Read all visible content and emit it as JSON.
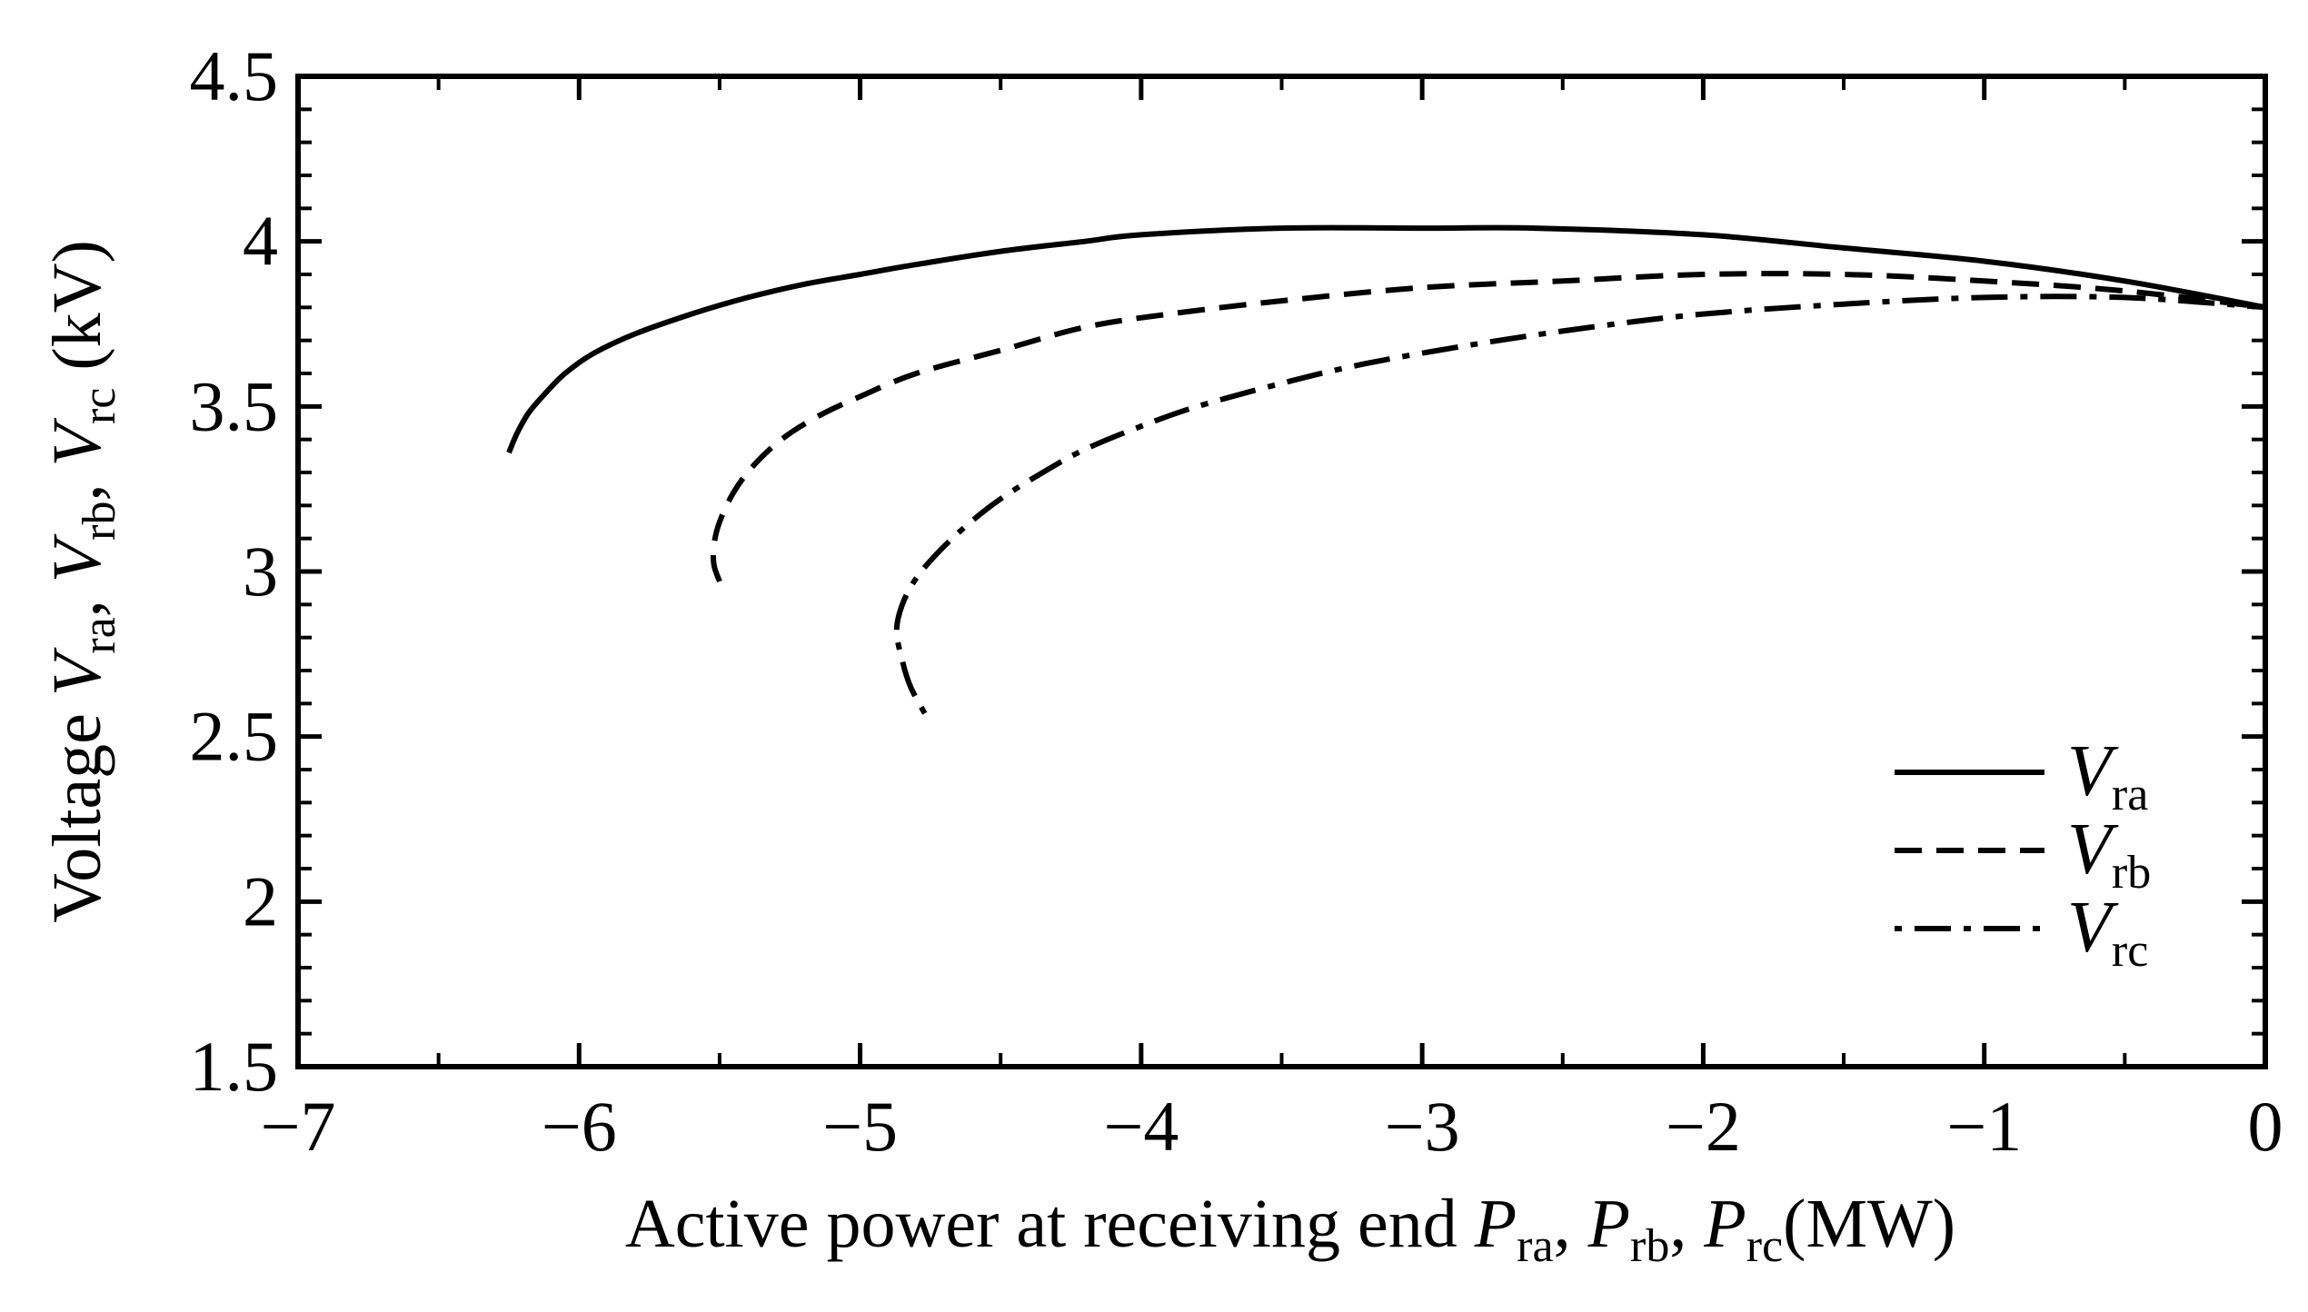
{
  "chart_data": {
    "type": "line",
    "title": "",
    "xlabel": {
      "prefix": "Active power at receiving end",
      "vars": [
        {
          "main": "P",
          "sub": "ra"
        },
        {
          "main": "P",
          "sub": "rb"
        },
        {
          "main": "P",
          "sub": "rc"
        }
      ],
      "separator": ", ",
      "unit": "(MW)"
    },
    "ylabel": {
      "prefix": "Voltage",
      "vars": [
        {
          "main": "V",
          "sub": "ra"
        },
        {
          "main": "V",
          "sub": "rb"
        },
        {
          "main": "V",
          "sub": "rc"
        }
      ],
      "separator": ", ",
      "unit": "(kV)"
    },
    "xlim": [
      -7,
      0
    ],
    "ylim": [
      1.5,
      4.5
    ],
    "x_ticks": [
      -7,
      -6,
      -5,
      -4,
      -3,
      -2,
      -1,
      0
    ],
    "x_tick_labels": [
      "−7",
      "−6",
      "−5",
      "−4",
      "−3",
      "−2",
      "−1",
      "0"
    ],
    "y_ticks": [
      1.5,
      2,
      2.5,
      3,
      3.5,
      4,
      4.5
    ],
    "y_tick_labels": [
      "1.5",
      "2",
      "2.5",
      "3",
      "3.5",
      "4",
      "4.5"
    ],
    "x_minor_step": 0.5,
    "y_minor_step": 0.1,
    "grid": false,
    "legend_position": "bottom-right",
    "series": [
      {
        "name": "V_ra",
        "legend_main": "V",
        "legend_sub": "ra",
        "style": "solid",
        "points": [
          [
            -6.25,
            3.36
          ],
          [
            -6.22,
            3.42
          ],
          [
            -6.18,
            3.48
          ],
          [
            -6.12,
            3.54
          ],
          [
            -6.05,
            3.6
          ],
          [
            -5.95,
            3.66
          ],
          [
            -5.8,
            3.72
          ],
          [
            -5.6,
            3.78
          ],
          [
            -5.4,
            3.83
          ],
          [
            -5.2,
            3.87
          ],
          [
            -5.0,
            3.9
          ],
          [
            -4.8,
            3.93
          ],
          [
            -4.5,
            3.97
          ],
          [
            -4.2,
            4.0
          ],
          [
            -4.0,
            4.02
          ],
          [
            -3.5,
            4.04
          ],
          [
            -3.0,
            4.04
          ],
          [
            -2.6,
            4.04
          ],
          [
            -2.0,
            4.02
          ],
          [
            -1.5,
            3.98
          ],
          [
            -1.0,
            3.94
          ],
          [
            -0.5,
            3.88
          ],
          [
            0.0,
            3.8
          ]
        ]
      },
      {
        "name": "V_rb",
        "legend_main": "V",
        "legend_sub": "rb",
        "style": "dashed",
        "points": [
          [
            -5.5,
            2.97
          ],
          [
            -5.52,
            3.02
          ],
          [
            -5.52,
            3.08
          ],
          [
            -5.5,
            3.15
          ],
          [
            -5.45,
            3.24
          ],
          [
            -5.38,
            3.32
          ],
          [
            -5.28,
            3.4
          ],
          [
            -5.15,
            3.47
          ],
          [
            -5.0,
            3.53
          ],
          [
            -4.8,
            3.6
          ],
          [
            -4.5,
            3.67
          ],
          [
            -4.2,
            3.74
          ],
          [
            -3.9,
            3.78
          ],
          [
            -3.5,
            3.82
          ],
          [
            -3.0,
            3.86
          ],
          [
            -2.5,
            3.88
          ],
          [
            -2.0,
            3.9
          ],
          [
            -1.5,
            3.9
          ],
          [
            -1.0,
            3.88
          ],
          [
            -0.5,
            3.85
          ],
          [
            0.0,
            3.8
          ]
        ]
      },
      {
        "name": "V_rc",
        "legend_main": "V",
        "legend_sub": "rc",
        "style": "dashdot",
        "points": [
          [
            -4.77,
            2.57
          ],
          [
            -4.82,
            2.65
          ],
          [
            -4.85,
            2.73
          ],
          [
            -4.87,
            2.82
          ],
          [
            -4.85,
            2.9
          ],
          [
            -4.8,
            2.98
          ],
          [
            -4.72,
            3.06
          ],
          [
            -4.62,
            3.14
          ],
          [
            -4.5,
            3.22
          ],
          [
            -4.35,
            3.3
          ],
          [
            -4.2,
            3.37
          ],
          [
            -4.0,
            3.44
          ],
          [
            -3.8,
            3.5
          ],
          [
            -3.5,
            3.57
          ],
          [
            -3.2,
            3.63
          ],
          [
            -2.8,
            3.69
          ],
          [
            -2.4,
            3.74
          ],
          [
            -2.0,
            3.78
          ],
          [
            -1.5,
            3.81
          ],
          [
            -1.0,
            3.83
          ],
          [
            -0.5,
            3.83
          ],
          [
            0.0,
            3.8
          ]
        ]
      }
    ]
  }
}
